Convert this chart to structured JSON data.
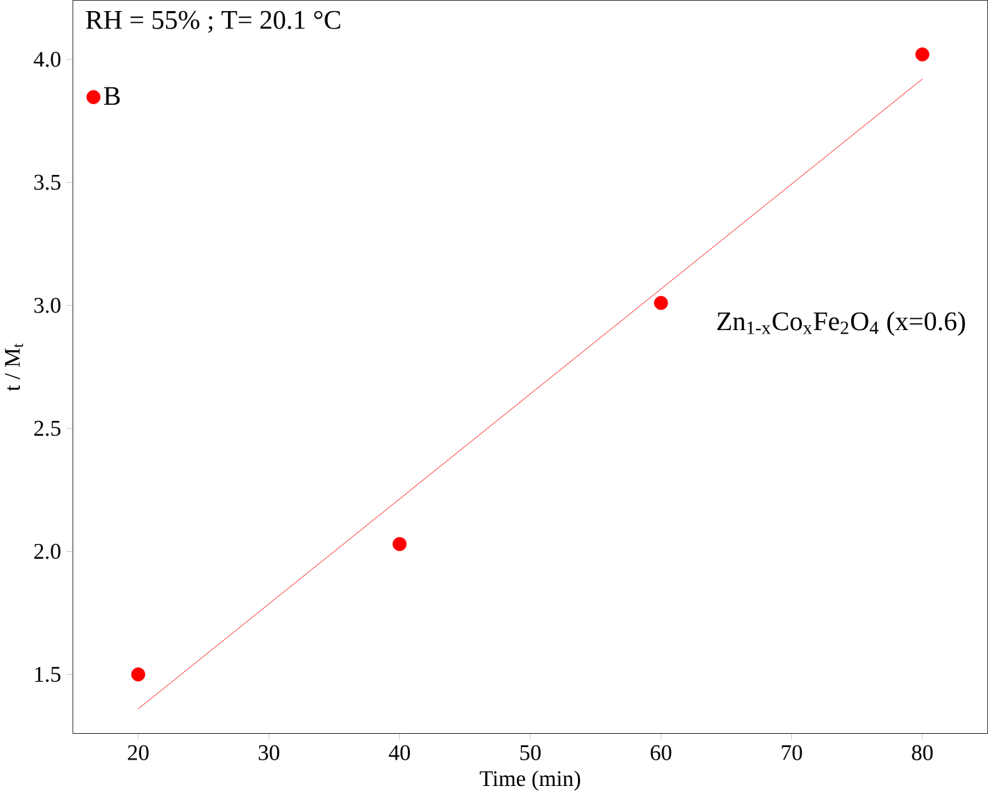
{
  "chart_data": {
    "type": "scatter",
    "xlabel": "Time (min)",
    "ylabel": "t / M$_{t}$",
    "xlim": [
      15,
      85
    ],
    "ylim": [
      1.26,
      4.24
    ],
    "xticks": [
      20,
      30,
      40,
      50,
      60,
      70,
      80
    ],
    "yticks": [
      1.5,
      {
        "value": 2,
        "label": "2.0"
      },
      2.5,
      {
        "value": 3,
        "label": "3.0"
      },
      3.5,
      {
        "value": 4,
        "label": "4.0"
      }
    ],
    "series": [
      {
        "name": "B",
        "color": "#ff0000",
        "marker": "circle",
        "x": [
          20,
          40,
          60,
          80
        ],
        "values": [
          1.5,
          2.03,
          3.01,
          4.02
        ]
      },
      {
        "type": "line",
        "color": "#ff0000",
        "marker": "none",
        "line_style": "solid",
        "x": [
          20,
          80
        ],
        "values": [
          1.36,
          3.92
        ]
      }
    ],
    "annotations": [
      "RH = 55% ;  T= 20.1 °C",
      "Zn$_{1-x}$Co$_{x}$Fe$_{2}$O$_{4}$ (x=0.6)"
    ],
    "legend": "top left",
    "grid": false
  }
}
